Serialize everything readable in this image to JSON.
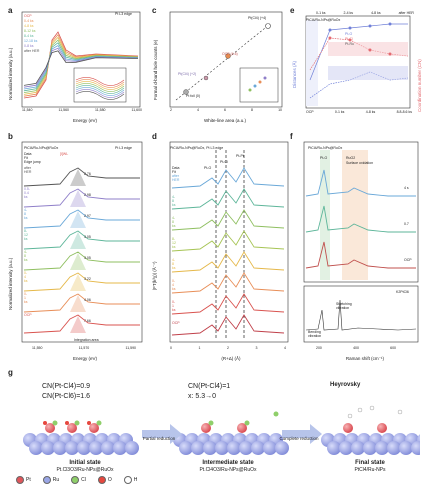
{
  "panels": {
    "a": {
      "letter": "a",
      "title": "Pt L3 edge",
      "xlabel": "Energy (eV)",
      "ylabel": "Normalized intensity (a.u.)",
      "xticks": [
        "11,540",
        "11,560",
        "11,580",
        "11,600"
      ],
      "legend": [
        "OCP",
        "0-4 ks",
        "4-8 ks",
        "8-12 ks",
        "8-4 ks",
        "12-18 ks",
        "0-8 ks",
        "after HER"
      ],
      "colors": [
        "#d9534f",
        "#e88e58",
        "#e5b84a",
        "#8fbf60",
        "#5eb69a",
        "#6aa8d8",
        "#8f7fc9",
        "#555555"
      ]
    },
    "b": {
      "letter": "b",
      "title": "Pt L3 edge",
      "sample": "PtCl4/Ru-NPs@RuOx",
      "legend": [
        "Data",
        "Fit",
        "Edge jump",
        "[I]WL"
      ],
      "states": [
        "after HER",
        "0.5-0.4 ks",
        "4-8 ks",
        "8-12 ks",
        "4-8 ks",
        "0-4 ks",
        "0-1 ks",
        "OCP"
      ],
      "values": [
        "2.76",
        "2.98",
        "2.97",
        "3.05",
        "3.05",
        "3.22",
        "4.06",
        "7.66"
      ],
      "xlabel": "Energy (eV)",
      "ylabel": "Normalized intensity (a.u.)",
      "xticks": [
        "11,550",
        "11,570",
        "11,590"
      ],
      "annotation": "Integration area"
    },
    "c": {
      "letter": "c",
      "xlabel": "White-line area (a.u.)",
      "ylabel": "Formal d-band hole counts (e)",
      "xticks": [
        "2",
        "4",
        "6",
        "8",
        "10"
      ],
      "yticks": [
        "0",
        "2",
        "4"
      ],
      "points": [
        "Pt foil (0)",
        "OCP (4.6)",
        "Pt(Cl4) (+4)",
        "Pt(Cl4) (+2)"
      ]
    },
    "d": {
      "letter": "d",
      "title": "PtCl4/Ru-NPs@RuOx, Pt L3 edge",
      "annotations": [
        "Pt-Pt",
        "Pt-Cl",
        "Pt-O"
      ],
      "legend": [
        "Data",
        "Fit"
      ],
      "states": [
        "after HER",
        "4-8 ks",
        "4-8 ks",
        "8-12 ks",
        "4-8 ks",
        "0-4 ks",
        "0-1 ks",
        "OCP"
      ],
      "xlabel": "(R+Δ) (Å)",
      "ylabel": "|FT(k³χ)| (Å⁻⁴)",
      "xticks": [
        "0",
        "1",
        "2",
        "3",
        "4"
      ]
    },
    "e": {
      "letter": "e",
      "sample": "PtCl4/Ru-NPs@RuOx",
      "legend": [
        "Pt-O",
        "Pt-Cl",
        "Pt-Ru"
      ],
      "ylabel_left": "Distances (Å)",
      "ylabel_right": "Coordination number (CN)",
      "xticks": [
        "OCP",
        "0-1 ks",
        "4-8 ks",
        "8.8-8.6 ks"
      ],
      "top_labels": [
        "0-1 ks",
        "2-4 ks",
        "4-8 ks",
        "after HER"
      ]
    },
    "f": {
      "letter": "f",
      "sample": "PtCl4/Ru-NPs@RuOx",
      "peaks": [
        "Pt-O",
        "RuO2",
        "Surface oxidation"
      ],
      "states": [
        "4 s",
        "0.7",
        "OCP"
      ],
      "ref": "K2PtCl6",
      "ref_labels": [
        "Stretching vibration",
        "Bending vibration"
      ],
      "xlabel": "Raman shift (cm⁻¹)",
      "xticks": [
        "200",
        "400",
        "600"
      ]
    },
    "g": {
      "letter": "g",
      "label_top": "Heyrovsky",
      "initial": {
        "cn": [
          "CN(Pt-Cl4)=0.9",
          "CN(Pt-Cl6)=1.6"
        ],
        "title": "Initial state",
        "sub": "Pt.Cl3O3/Ru-NPs@RuOx"
      },
      "intermediate": {
        "cn": [
          "CN(Pt-Cl4)=1",
          "x: 5.3→0"
        ],
        "title": "Intermediate state",
        "sub": "Pt.Cl4O3/Ru-NPs@RuOx"
      },
      "final": {
        "title": "Final state",
        "sub": "PtCl4/Ru-NPs"
      },
      "arrow1": "Partial reduction",
      "arrow2": "Complete reduction",
      "legend": [
        "Pt",
        "Ru",
        "Cl",
        "O",
        "H"
      ],
      "legend_colors": [
        "#e0565b",
        "#9aa6e6",
        "#8fcf6a",
        "#e6483f",
        "#ffffff"
      ]
    }
  }
}
